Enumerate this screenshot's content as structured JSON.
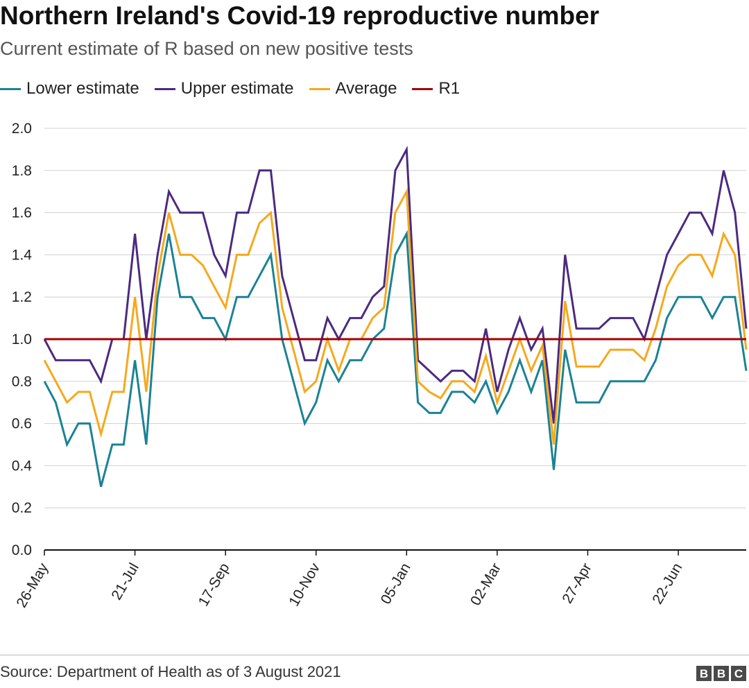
{
  "header": {
    "title": "Northern Ireland's Covid-19 reproductive number",
    "subtitle": "Current estimate of R based on new positive tests"
  },
  "legend": {
    "items": [
      {
        "label": "Lower estimate",
        "color": "#1a8294"
      },
      {
        "label": "Upper estimate",
        "color": "#4b2a80"
      },
      {
        "label": "Average",
        "color": "#f6a81c"
      },
      {
        "label": "R1",
        "color": "#a30000"
      }
    ]
  },
  "footer": {
    "source": "Source: Department of Health as of 3 August 2021",
    "logo_letters": [
      "B",
      "B",
      "C"
    ]
  },
  "chart_data": {
    "type": "line",
    "title": "Northern Ireland's Covid-19 reproductive number",
    "subtitle": "Current estimate of R based on new positive tests",
    "xlabel": "",
    "ylabel": "",
    "ylim": [
      0,
      2.0
    ],
    "yticks": [
      "0.0",
      "0.2",
      "0.4",
      "0.6",
      "0.8",
      "1.0",
      "1.2",
      "1.4",
      "1.6",
      "1.8",
      "2.0"
    ],
    "grid": true,
    "legend_position": "top-left",
    "x_tick_labels": [
      {
        "label": "26-May",
        "index": 0
      },
      {
        "label": "21-Jul",
        "index": 8
      },
      {
        "label": "17-Sep",
        "index": 16
      },
      {
        "label": "10-Nov",
        "index": 24
      },
      {
        "label": "05-Jan",
        "index": 32
      },
      {
        "label": "02-Mar",
        "index": 40
      },
      {
        "label": "27-Apr",
        "index": 48
      },
      {
        "label": "22-Jun",
        "index": 56
      }
    ],
    "series": [
      {
        "name": "Lower estimate",
        "color": "#1a8294",
        "values": [
          0.8,
          0.7,
          0.5,
          0.6,
          0.6,
          0.3,
          0.5,
          0.5,
          0.9,
          0.5,
          1.2,
          1.5,
          1.2,
          1.2,
          1.1,
          1.1,
          1.0,
          1.2,
          1.2,
          1.3,
          1.4,
          1.0,
          0.8,
          0.6,
          0.7,
          0.9,
          0.8,
          0.9,
          0.9,
          1.0,
          1.05,
          1.4,
          1.5,
          0.7,
          0.65,
          0.65,
          0.75,
          0.75,
          0.7,
          0.8,
          0.65,
          0.75,
          0.9,
          0.75,
          0.9,
          0.38,
          0.95,
          0.7,
          0.7,
          0.7,
          0.8,
          0.8,
          0.8,
          0.8,
          0.9,
          1.1,
          1.2,
          1.2,
          1.2,
          1.1,
          1.2,
          1.2,
          0.85
        ]
      },
      {
        "name": "Upper estimate",
        "color": "#4b2a80",
        "values": [
          1.0,
          0.9,
          0.9,
          0.9,
          0.9,
          0.8,
          1.0,
          1.0,
          1.5,
          1.0,
          1.4,
          1.7,
          1.6,
          1.6,
          1.6,
          1.4,
          1.3,
          1.6,
          1.6,
          1.8,
          1.8,
          1.3,
          1.1,
          0.9,
          0.9,
          1.1,
          1.0,
          1.1,
          1.1,
          1.2,
          1.25,
          1.8,
          1.9,
          0.9,
          0.85,
          0.8,
          0.85,
          0.85,
          0.8,
          1.05,
          0.75,
          0.95,
          1.1,
          0.95,
          1.05,
          0.6,
          1.4,
          1.05,
          1.05,
          1.05,
          1.1,
          1.1,
          1.1,
          1.0,
          1.2,
          1.4,
          1.5,
          1.6,
          1.6,
          1.5,
          1.8,
          1.6,
          1.05
        ]
      },
      {
        "name": "Average",
        "color": "#f6a81c",
        "values": [
          0.9,
          0.8,
          0.7,
          0.75,
          0.75,
          0.55,
          0.75,
          0.75,
          1.2,
          0.75,
          1.3,
          1.6,
          1.4,
          1.4,
          1.35,
          1.25,
          1.15,
          1.4,
          1.4,
          1.55,
          1.6,
          1.15,
          0.95,
          0.75,
          0.8,
          1.0,
          0.85,
          1.0,
          1.0,
          1.1,
          1.15,
          1.6,
          1.7,
          0.8,
          0.75,
          0.72,
          0.8,
          0.8,
          0.75,
          0.92,
          0.7,
          0.85,
          1.0,
          0.85,
          0.97,
          0.5,
          1.18,
          0.87,
          0.87,
          0.87,
          0.95,
          0.95,
          0.95,
          0.9,
          1.05,
          1.25,
          1.35,
          1.4,
          1.4,
          1.3,
          1.5,
          1.4,
          0.95
        ]
      },
      {
        "name": "R1",
        "color": "#a30000",
        "values": [
          1.0,
          1.0,
          1.0,
          1.0,
          1.0,
          1.0,
          1.0,
          1.0,
          1.0,
          1.0,
          1.0,
          1.0,
          1.0,
          1.0,
          1.0,
          1.0,
          1.0,
          1.0,
          1.0,
          1.0,
          1.0,
          1.0,
          1.0,
          1.0,
          1.0,
          1.0,
          1.0,
          1.0,
          1.0,
          1.0,
          1.0,
          1.0,
          1.0,
          1.0,
          1.0,
          1.0,
          1.0,
          1.0,
          1.0,
          1.0,
          1.0,
          1.0,
          1.0,
          1.0,
          1.0,
          1.0,
          1.0,
          1.0,
          1.0,
          1.0,
          1.0,
          1.0,
          1.0,
          1.0,
          1.0,
          1.0,
          1.0,
          1.0,
          1.0,
          1.0,
          1.0,
          1.0,
          1.0
        ]
      }
    ]
  }
}
